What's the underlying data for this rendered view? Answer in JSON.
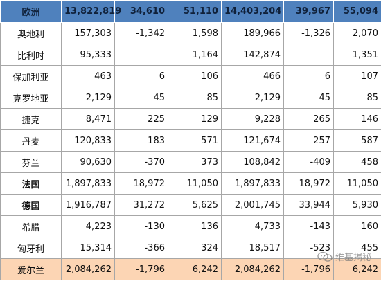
{
  "table": {
    "header": [
      "欧洲",
      "13,822,819",
      "34,610",
      "51,110",
      "14,403,204",
      "39,967",
      "55,094"
    ],
    "rows": [
      {
        "country": "奥地利",
        "cells": [
          "157,303",
          "-1,342",
          "1,598",
          "189,966",
          "-1,326",
          "2,070"
        ],
        "bold": false,
        "highlight": false
      },
      {
        "country": "比利时",
        "cells": [
          "95,333",
          "",
          "1,164",
          "142,874",
          "",
          "1,351"
        ],
        "bold": false,
        "highlight": false
      },
      {
        "country": "保加利亚",
        "cells": [
          "463",
          "6",
          "106",
          "466",
          "6",
          "107"
        ],
        "bold": false,
        "highlight": false
      },
      {
        "country": "克罗地亚",
        "cells": [
          "2,129",
          "45",
          "85",
          "2,129",
          "45",
          "85"
        ],
        "bold": false,
        "highlight": false
      },
      {
        "country": "捷克",
        "cells": [
          "8,471",
          "225",
          "129",
          "9,228",
          "265",
          "146"
        ],
        "bold": false,
        "highlight": false
      },
      {
        "country": "丹麦",
        "cells": [
          "120,833",
          "183",
          "571",
          "121,674",
          "257",
          "587"
        ],
        "bold": false,
        "highlight": false
      },
      {
        "country": "芬兰",
        "cells": [
          "90,630",
          "-370",
          "373",
          "108,842",
          "-409",
          "458"
        ],
        "bold": false,
        "highlight": false
      },
      {
        "country": "法国",
        "cells": [
          "1,897,833",
          "18,972",
          "11,050",
          "1,897,833",
          "18,972",
          "11,050"
        ],
        "bold": true,
        "highlight": false
      },
      {
        "country": "德国",
        "cells": [
          "1,916,787",
          "31,272",
          "5,625",
          "2,001,745",
          "33,944",
          "5,930"
        ],
        "bold": true,
        "highlight": false
      },
      {
        "country": "希腊",
        "cells": [
          "4,223",
          "-130",
          "136",
          "4,733",
          "-143",
          "160"
        ],
        "bold": false,
        "highlight": false
      },
      {
        "country": "匈牙利",
        "cells": [
          "15,314",
          "-366",
          "324",
          "18,517",
          "-523",
          "455"
        ],
        "bold": false,
        "highlight": false
      },
      {
        "country": "爱尔兰",
        "cells": [
          "2,084,262",
          "-1,796",
          "6,242",
          "2,084,262",
          "-1,796",
          "6,242"
        ],
        "bold": false,
        "highlight": true
      }
    ]
  },
  "watermark": {
    "text": "维基揭秘",
    "icon": "chat-bubbles-icon"
  },
  "colors": {
    "header_bg": "#4f81bd",
    "highlight_bg": "#fcd5b4",
    "grid": "#a7a7a7"
  }
}
